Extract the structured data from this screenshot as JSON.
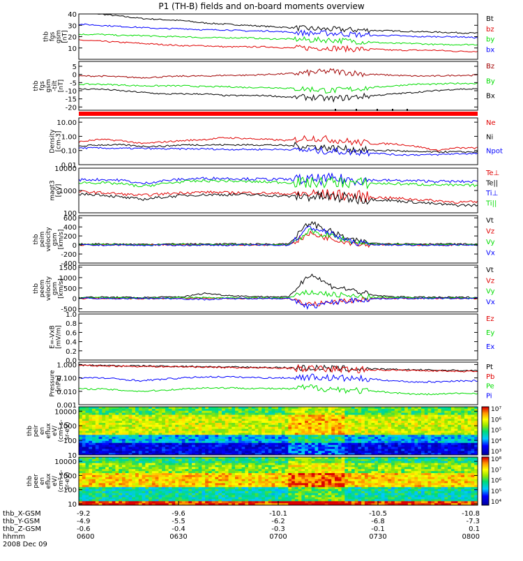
{
  "title": "P1 (TH-B) fields and on-board moments overview",
  "colors": {
    "black": "#000000",
    "red": "#e00000",
    "green": "#00dd00",
    "blue": "#0000ff",
    "darkred": "#a00000"
  },
  "chart_data": [
    {
      "type": "line",
      "name": "thb fgs gsm",
      "ylabel": [
        "thb",
        "fgs",
        "gsm",
        "[nT]"
      ],
      "ylim": [
        0,
        40
      ],
      "yticks": [
        {
          "v": 40,
          "t": "40"
        },
        {
          "v": 30,
          "t": "30"
        },
        {
          "v": 20,
          "t": "20"
        },
        {
          "v": 10,
          "t": "10"
        }
      ],
      "series": [
        {
          "name": "Bt",
          "color": "#000000",
          "values": [
            41,
            40,
            38,
            36,
            35,
            34,
            32,
            31,
            30,
            29,
            28,
            27,
            26.5,
            26,
            25.5,
            25,
            24.5,
            24,
            23.5,
            23
          ]
        },
        {
          "name": "bz",
          "color": "#e00000",
          "values": [
            17,
            16,
            15,
            14,
            13,
            12,
            12,
            11,
            11,
            11,
            10,
            10,
            10,
            9,
            9,
            8,
            8,
            8,
            7,
            7
          ]
        },
        {
          "name": "by",
          "color": "#00dd00",
          "values": [
            22,
            22,
            21,
            21,
            20,
            20,
            19,
            19,
            19,
            18,
            18,
            17,
            17,
            16,
            15,
            14,
            14,
            13,
            13,
            13
          ]
        },
        {
          "name": "bx",
          "color": "#0000ff",
          "values": [
            31,
            30,
            29,
            28,
            27,
            27,
            26,
            26,
            25,
            25,
            24,
            23,
            23,
            22,
            21,
            21,
            20,
            20,
            20,
            19
          ]
        }
      ]
    },
    {
      "type": "line",
      "name": "thb fgs gsm -tilt",
      "ylabel": [
        "thb",
        "fgs",
        "gsm",
        "-tilt",
        "[nT]"
      ],
      "ylim": [
        -22,
        8
      ],
      "yticks": [
        {
          "v": 5,
          "t": "5"
        },
        {
          "v": 0,
          "t": "0"
        },
        {
          "v": -5,
          "t": "-5"
        },
        {
          "v": -10,
          "t": "-10"
        },
        {
          "v": -15,
          "t": "-15"
        },
        {
          "v": -20,
          "t": "-20"
        }
      ],
      "series": [
        {
          "name": "Bz",
          "color": "#a00000",
          "values": [
            -1,
            -1,
            -1.5,
            -2,
            -1.5,
            -1,
            -1,
            -0.5,
            -0.5,
            0,
            0.5,
            1,
            2,
            1,
            0,
            -0.5,
            -1,
            -1,
            -0.5,
            -0.5
          ]
        },
        {
          "name": "By",
          "color": "#00dd00",
          "values": [
            -6,
            -6,
            -6.5,
            -7,
            -7,
            -7,
            -7.5,
            -7.5,
            -8,
            -8,
            -8.5,
            -9,
            -10,
            -9,
            -8,
            -7,
            -6,
            -6,
            -5.5,
            -5.5
          ]
        },
        {
          "name": "Bx",
          "color": "#000000",
          "values": [
            -9,
            -9,
            -10,
            -11,
            -12,
            -12,
            -12,
            -13,
            -13,
            -13,
            -14,
            -14,
            -15,
            -14,
            -13,
            -12,
            -11,
            -10,
            -9,
            -9
          ]
        }
      ]
    },
    {
      "type": "line",
      "name": "Density",
      "ylabel": [
        "Density",
        "[cm-3]"
      ],
      "log": true,
      "ylim": [
        0.01,
        20
      ],
      "yticks": [
        {
          "v": 10,
          "t": "10.00"
        },
        {
          "v": 1,
          "t": "1.00"
        },
        {
          "v": 0.1,
          "t": "0.10"
        },
        {
          "v": 0.01,
          "t": "0.01"
        }
      ],
      "series": [
        {
          "name": "Ne",
          "color": "#e00000",
          "values": [
            0.4,
            0.6,
            0.5,
            0.3,
            0.4,
            0.5,
            0.6,
            0.8,
            0.7,
            0.6,
            0.5,
            0.8,
            0.6,
            0.4,
            0.3,
            0.3,
            0.2,
            0.1,
            0.15,
            0.15
          ]
        },
        {
          "name": "Ni",
          "color": "#000000",
          "values": [
            0.2,
            0.25,
            0.25,
            0.2,
            0.2,
            0.25,
            0.25,
            0.25,
            0.25,
            0.25,
            0.22,
            0.2,
            0.15,
            0.12,
            0.1,
            0.1,
            0.08,
            0.08,
            0.08,
            0.08
          ]
        },
        {
          "name": "Npot",
          "color": "#0000ff",
          "values": [
            0.15,
            0.15,
            0.14,
            0.14,
            0.13,
            0.13,
            0.13,
            0.12,
            0.12,
            0.12,
            0.12,
            0.1,
            0.09,
            0.08,
            0.07,
            0.05,
            0.05,
            0.05,
            0.06,
            0.06
          ]
        }
      ]
    },
    {
      "type": "line",
      "name": "magt3",
      "ylabel": [
        "magt3",
        "[eV]"
      ],
      "log": true,
      "ylim": [
        100,
        10000
      ],
      "yticks": [
        {
          "v": 10000,
          "t": "10000"
        },
        {
          "v": 1000,
          "t": "1000"
        },
        {
          "v": 100,
          "t": "100"
        }
      ],
      "series": [
        {
          "name": "Te⊥",
          "color": "#e00000",
          "values": [
            900,
            800,
            700,
            600,
            700,
            800,
            850,
            800,
            800,
            750,
            700,
            700,
            650,
            600,
            500,
            450,
            400,
            350,
            300,
            300
          ]
        },
        {
          "name": "Te||",
          "color": "#000000",
          "values": [
            700,
            650,
            500,
            400,
            500,
            600,
            650,
            650,
            650,
            600,
            550,
            550,
            500,
            450,
            400,
            350,
            300,
            250,
            220,
            220
          ]
        },
        {
          "name": "Ti⊥",
          "color": "#0000ff",
          "values": [
            3000,
            3100,
            2900,
            2000,
            2700,
            3200,
            3500,
            3500,
            3300,
            3200,
            3100,
            3000,
            3300,
            3000,
            2900,
            2800,
            2700,
            2600,
            2500,
            2500
          ]
        },
        {
          "name": "Ti||",
          "color": "#00dd00",
          "values": [
            2300,
            2200,
            2000,
            1500,
            2000,
            2500,
            2700,
            2700,
            2500,
            2400,
            2300,
            2200,
            2400,
            2200,
            2100,
            2000,
            1900,
            1800,
            1700,
            1700
          ]
        }
      ]
    },
    {
      "type": "line",
      "name": "thb peim velocity gsm",
      "ylabel": [
        "thb",
        "peim",
        "velocity",
        "gsm",
        "[km/s]"
      ],
      "ylim": [
        -400,
        650
      ],
      "yticks": [
        {
          "v": 600,
          "t": "600"
        },
        {
          "v": 400,
          "t": "400"
        },
        {
          "v": 200,
          "t": "200"
        },
        {
          "v": 0,
          "t": "0"
        },
        {
          "v": -200,
          "t": "-200"
        },
        {
          "v": -400,
          "t": "-400"
        }
      ],
      "series": [
        {
          "name": "Vt",
          "color": "#000000",
          "values": [
            20,
            25,
            20,
            15,
            20,
            25,
            20,
            25,
            20,
            20,
            25,
            500,
            300,
            100,
            40,
            30,
            25,
            25,
            20,
            20
          ]
        },
        {
          "name": "Vz",
          "color": "#e00000",
          "values": [
            0,
            5,
            0,
            -5,
            0,
            5,
            0,
            5,
            0,
            0,
            5,
            250,
            150,
            50,
            10,
            5,
            0,
            0,
            0,
            0
          ]
        },
        {
          "name": "Vy",
          "color": "#00dd00",
          "values": [
            10,
            10,
            5,
            0,
            10,
            10,
            5,
            10,
            5,
            5,
            10,
            300,
            200,
            80,
            20,
            10,
            10,
            10,
            5,
            5
          ]
        },
        {
          "name": "Vx",
          "color": "#0000ff",
          "values": [
            0,
            -5,
            0,
            -10,
            0,
            -5,
            0,
            -5,
            0,
            0,
            -5,
            400,
            250,
            60,
            10,
            0,
            0,
            -5,
            0,
            0
          ]
        }
      ]
    },
    {
      "type": "line",
      "name": "thb peem velocity gsm",
      "ylabel": [
        "thb",
        "peem",
        "velocity",
        "gsm",
        "[km/s]"
      ],
      "ylim": [
        -650,
        1600
      ],
      "yticks": [
        {
          "v": 1500,
          "t": "1500"
        },
        {
          "v": 1000,
          "t": "1000"
        },
        {
          "v": 500,
          "t": "500"
        },
        {
          "v": 0,
          "t": "0"
        },
        {
          "v": -500,
          "t": "-500"
        }
      ],
      "series": [
        {
          "name": "Vt",
          "color": "#000000",
          "values": [
            50,
            60,
            50,
            40,
            60,
            80,
            250,
            150,
            100,
            80,
            70,
            1200,
            600,
            400,
            150,
            80,
            60,
            50,
            50,
            50
          ]
        },
        {
          "name": "Vz",
          "color": "#e00000",
          "values": [
            0,
            10,
            0,
            -10,
            0,
            10,
            0,
            10,
            0,
            0,
            0,
            -300,
            -200,
            -100,
            0,
            0,
            0,
            0,
            0,
            0
          ]
        },
        {
          "name": "Vy",
          "color": "#00dd00",
          "values": [
            20,
            30,
            20,
            10,
            20,
            30,
            40,
            30,
            20,
            20,
            30,
            300,
            200,
            100,
            50,
            40,
            30,
            30,
            20,
            20
          ]
        },
        {
          "name": "Vx",
          "color": "#0000ff",
          "values": [
            0,
            0,
            -10,
            0,
            0,
            -20,
            -50,
            -20,
            0,
            0,
            -10,
            -400,
            -200,
            -100,
            -20,
            0,
            0,
            0,
            0,
            0
          ]
        }
      ]
    },
    {
      "type": "line",
      "name": "E=-VxB",
      "ylabel": [
        "E=-VxB",
        "[mV/m]"
      ],
      "ylim": [
        0,
        1
      ],
      "yticks": [
        {
          "v": 1,
          "t": "1.0"
        },
        {
          "v": 0.8,
          "t": "0.8"
        },
        {
          "v": 0.6,
          "t": "0.6"
        },
        {
          "v": 0.4,
          "t": "0.4"
        },
        {
          "v": 0.2,
          "t": "0.2"
        },
        {
          "v": 0,
          "t": "0.0"
        }
      ],
      "series": [
        {
          "name": "Ez",
          "color": "#e00000",
          "values": []
        },
        {
          "name": "Ey",
          "color": "#00dd00",
          "values": []
        },
        {
          "name": "Ex",
          "color": "#0000ff",
          "values": []
        }
      ]
    },
    {
      "type": "line",
      "name": "Pressure",
      "ylabel": [
        "Pressure",
        "[nPa]"
      ],
      "log": true,
      "ylim": [
        0.001,
        1.5
      ],
      "yticks": [
        {
          "v": 1,
          "t": "1.000"
        },
        {
          "v": 0.1,
          "t": "0.100"
        },
        {
          "v": 0.01,
          "t": "0.010"
        },
        {
          "v": 0.001,
          "t": "0.001"
        }
      ],
      "series": [
        {
          "name": "Pt",
          "color": "#000000",
          "values": [
            0.9,
            0.85,
            0.8,
            0.78,
            0.75,
            0.72,
            0.7,
            0.65,
            0.62,
            0.6,
            0.58,
            0.55,
            0.5,
            0.47,
            0.45,
            0.42,
            0.4,
            0.38,
            0.36,
            0.35
          ]
        },
        {
          "name": "Pb",
          "color": "#e00000",
          "values": [
            0.85,
            0.8,
            0.75,
            0.72,
            0.7,
            0.68,
            0.65,
            0.6,
            0.58,
            0.55,
            0.53,
            0.5,
            0.45,
            0.42,
            0.4,
            0.38,
            0.36,
            0.34,
            0.32,
            0.3
          ]
        },
        {
          "name": "Pe",
          "color": "#00dd00",
          "values": [
            0.015,
            0.015,
            0.012,
            0.01,
            0.012,
            0.015,
            0.018,
            0.018,
            0.017,
            0.016,
            0.015,
            0.02,
            0.015,
            0.012,
            0.01,
            0.008,
            0.006,
            0.006,
            0.007,
            0.007
          ]
        },
        {
          "name": "Pi",
          "color": "#0000ff",
          "values": [
            0.1,
            0.1,
            0.08,
            0.06,
            0.08,
            0.1,
            0.12,
            0.12,
            0.11,
            0.1,
            0.1,
            0.12,
            0.1,
            0.09,
            0.08,
            0.06,
            0.05,
            0.05,
            0.06,
            0.06
          ]
        }
      ]
    },
    {
      "type": "heatmap",
      "name": "thb peir en eflux",
      "ylabel": [
        "thb",
        "peir",
        "en",
        "eflux",
        "eV/",
        "(cm²-s-",
        "sr-eV)"
      ],
      "log": true,
      "ylim": [
        10,
        20000
      ],
      "yticks": [
        {
          "v": 10000,
          "t": "10000"
        },
        {
          "v": 1000,
          "t": "1000"
        },
        {
          "v": 100,
          "t": "100"
        },
        {
          "v": 10,
          "t": "10"
        }
      ],
      "colorbar": {
        "min_exp": 3,
        "max_exp": 7,
        "labels": [
          "10⁷",
          "10⁶",
          "10⁵",
          "10⁴",
          "10³"
        ]
      }
    },
    {
      "type": "heatmap",
      "name": "thb peer en eflux",
      "ylabel": [
        "thb",
        "peer",
        "en",
        "eflux",
        "eV/",
        "(cm²-s-",
        "sr-eV)"
      ],
      "log": true,
      "ylim": [
        8,
        20000
      ],
      "yticks": [
        {
          "v": 10000,
          "t": "10000"
        },
        {
          "v": 1000,
          "t": "1000"
        },
        {
          "v": 100,
          "t": "100"
        },
        {
          "v": 10,
          "t": "10"
        }
      ],
      "colorbar": {
        "min_exp": 4,
        "max_exp": 8,
        "labels": [
          "10⁸",
          "10⁷",
          "10⁶",
          "10⁵",
          "10⁴"
        ]
      }
    }
  ],
  "x_axis": {
    "times": [
      "0600",
      "0630",
      "0700",
      "0730",
      "0800"
    ],
    "row_labels": [
      "thb_X-GSM",
      "thb_Y-GSM",
      "thb_Z-GSM",
      "hhmm"
    ],
    "x_gsm": [
      "-9.2",
      "-9.6",
      "-10.1",
      "-10.5",
      "-10.8"
    ],
    "y_gsm": [
      "-4.9",
      "-5.5",
      "-6.2",
      "-6.8",
      "-7.3"
    ],
    "z_gsm": [
      "-0.6",
      "-0.4",
      "-0.3",
      "-0.1",
      "0.1"
    ],
    "date": "2008 Dec 09"
  }
}
